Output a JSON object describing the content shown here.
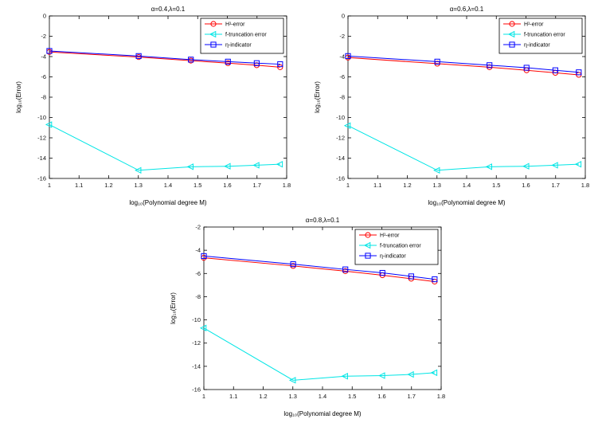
{
  "figure": {
    "background": "#ffffff",
    "axis_color": "#000000",
    "tick_label_color": "#111111"
  },
  "chart_data": [
    {
      "id": "alpha-0.4",
      "type": "line",
      "title": "α=0.4,λ=0.1",
      "xlabel": "log₁₀(Polynomial degree M)",
      "ylabel": "log₁₀(Error)",
      "xlim": [
        1,
        1.8
      ],
      "ylim": [
        -16,
        0
      ],
      "xticks": [
        1,
        1.1,
        1.2,
        1.3,
        1.4,
        1.5,
        1.6,
        1.7,
        1.8
      ],
      "yticks": [
        0,
        -2,
        -4,
        -6,
        -8,
        -10,
        -12,
        -14,
        -16
      ],
      "grid": false,
      "legend_position": "top-right",
      "x": [
        1.0,
        1.301,
        1.477,
        1.602,
        1.699,
        1.778
      ],
      "series": [
        {
          "name": "H¹-error",
          "color": "#ff0000",
          "marker": "circle",
          "values": [
            -3.55,
            -4.05,
            -4.4,
            -4.65,
            -4.85,
            -5.05
          ]
        },
        {
          "name": "f-truncation error",
          "color": "#00e5e5",
          "marker": "triangle-left",
          "values": [
            -10.7,
            -15.2,
            -14.85,
            -14.8,
            -14.7,
            -14.6
          ]
        },
        {
          "name": "η-indicator",
          "color": "#0000ff",
          "marker": "square",
          "values": [
            -3.45,
            -3.95,
            -4.3,
            -4.5,
            -4.65,
            -4.75
          ]
        }
      ]
    },
    {
      "id": "alpha-0.6",
      "type": "line",
      "title": "α=0.6,λ=0.1",
      "xlabel": "log₁₀(Polynomial degree M)",
      "ylabel": "log₁₀(Error)",
      "xlim": [
        1,
        1.8
      ],
      "ylim": [
        -16,
        0
      ],
      "xticks": [
        1,
        1.1,
        1.2,
        1.3,
        1.4,
        1.5,
        1.6,
        1.7,
        1.8
      ],
      "yticks": [
        0,
        -2,
        -4,
        -6,
        -8,
        -10,
        -12,
        -14,
        -16
      ],
      "grid": false,
      "legend_position": "top-right",
      "x": [
        1.0,
        1.301,
        1.477,
        1.602,
        1.699,
        1.778
      ],
      "series": [
        {
          "name": "H¹-error",
          "color": "#ff0000",
          "marker": "circle",
          "values": [
            -4.1,
            -4.7,
            -5.05,
            -5.35,
            -5.6,
            -5.8
          ]
        },
        {
          "name": "f-truncation error",
          "color": "#00e5e5",
          "marker": "triangle-left",
          "values": [
            -10.8,
            -15.2,
            -14.85,
            -14.8,
            -14.7,
            -14.6
          ]
        },
        {
          "name": "η-indicator",
          "color": "#0000ff",
          "marker": "square",
          "values": [
            -3.95,
            -4.5,
            -4.85,
            -5.1,
            -5.35,
            -5.55
          ]
        }
      ]
    },
    {
      "id": "alpha-0.8",
      "type": "line",
      "title": "α=0.8,λ=0.1",
      "xlabel": "log₁₀(Polynomial degree M)",
      "ylabel": "log₁₀(Error)",
      "xlim": [
        1,
        1.8
      ],
      "ylim": [
        -16,
        -2
      ],
      "xticks": [
        1,
        1.1,
        1.2,
        1.3,
        1.4,
        1.5,
        1.6,
        1.7,
        1.8
      ],
      "yticks": [
        -2,
        -4,
        -6,
        -8,
        -10,
        -12,
        -14,
        -16
      ],
      "grid": false,
      "legend_position": "top-right",
      "x": [
        1.0,
        1.301,
        1.477,
        1.602,
        1.699,
        1.778
      ],
      "series": [
        {
          "name": "H¹-error",
          "color": "#ff0000",
          "marker": "circle",
          "values": [
            -4.65,
            -5.35,
            -5.8,
            -6.15,
            -6.45,
            -6.7
          ]
        },
        {
          "name": "f-truncation error",
          "color": "#00e5e5",
          "marker": "triangle-left",
          "values": [
            -10.7,
            -15.2,
            -14.85,
            -14.8,
            -14.7,
            -14.55
          ]
        },
        {
          "name": "η-indicator",
          "color": "#0000ff",
          "marker": "square",
          "values": [
            -4.5,
            -5.2,
            -5.65,
            -5.95,
            -6.25,
            -6.5
          ]
        }
      ]
    }
  ]
}
